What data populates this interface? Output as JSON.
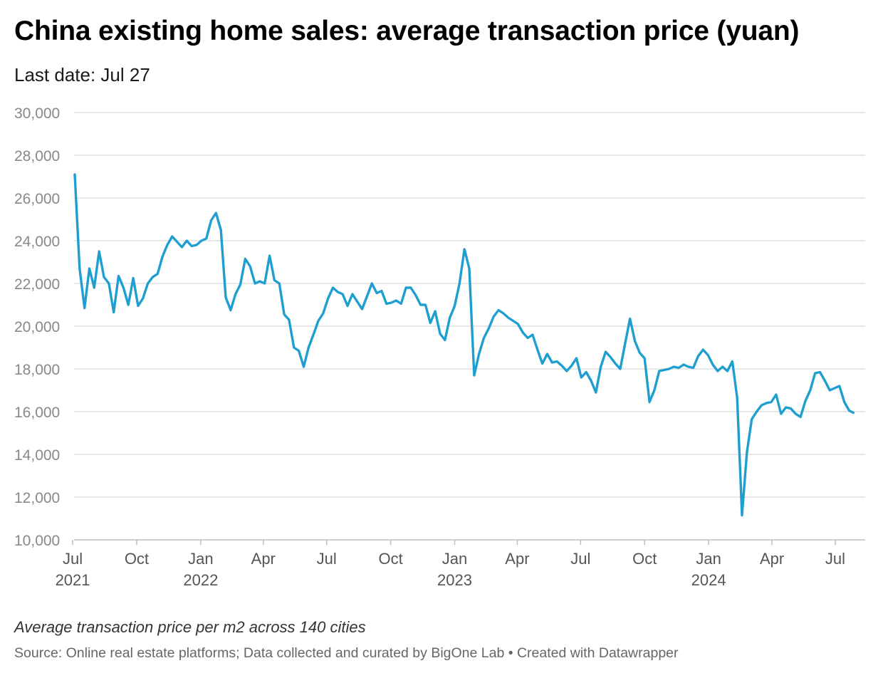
{
  "chart_data": {
    "type": "line",
    "title": "China existing home sales: average transaction price (yuan)",
    "subtitle": "Last date: Jul 27",
    "note": "Average transaction price per m2 across 140 cities",
    "source": "Source: Online real estate platforms; Data collected and curated by BigOne Lab • Created with Datawrapper",
    "ylim": [
      10000,
      30000
    ],
    "yticks": [
      {
        "value": 30000,
        "label": "30,000"
      },
      {
        "value": 28000,
        "label": "28,000"
      },
      {
        "value": 26000,
        "label": "26,000"
      },
      {
        "value": 24000,
        "label": "24,000"
      },
      {
        "value": 22000,
        "label": "22,000"
      },
      {
        "value": 20000,
        "label": "20,000"
      },
      {
        "value": 18000,
        "label": "18,000"
      },
      {
        "value": 16000,
        "label": "16,000"
      },
      {
        "value": 14000,
        "label": "14,000"
      },
      {
        "value": 12000,
        "label": "12,000"
      },
      {
        "value": 10000,
        "label": "10,000"
      }
    ],
    "xlim": [
      "2021-07-03",
      "2024-08-13"
    ],
    "xticks": [
      {
        "date": "2021-07-01",
        "label": "Jul",
        "year": "2021"
      },
      {
        "date": "2021-10-01",
        "label": "Oct",
        "year": ""
      },
      {
        "date": "2022-01-01",
        "label": "Jan",
        "year": "2022"
      },
      {
        "date": "2022-04-01",
        "label": "Apr",
        "year": ""
      },
      {
        "date": "2022-07-01",
        "label": "Jul",
        "year": ""
      },
      {
        "date": "2022-10-01",
        "label": "Oct",
        "year": ""
      },
      {
        "date": "2023-01-01",
        "label": "Jan",
        "year": "2023"
      },
      {
        "date": "2023-04-01",
        "label": "Apr",
        "year": ""
      },
      {
        "date": "2023-07-01",
        "label": "Jul",
        "year": ""
      },
      {
        "date": "2023-10-01",
        "label": "Oct",
        "year": ""
      },
      {
        "date": "2024-01-01",
        "label": "Jan",
        "year": "2024"
      },
      {
        "date": "2024-04-01",
        "label": "Apr",
        "year": ""
      },
      {
        "date": "2024-07-01",
        "label": "Jul",
        "year": ""
      }
    ],
    "line_color": "#1f9fd0",
    "grid_color": "#e1e1e1",
    "series": [
      {
        "x": [
          "2021-07-04",
          "2021-07-11",
          "2021-07-18",
          "2021-07-25",
          "2021-08-01",
          "2021-08-08",
          "2021-08-15",
          "2021-08-22",
          "2021-08-29",
          "2021-09-05",
          "2021-09-12",
          "2021-09-19",
          "2021-09-26",
          "2021-10-03",
          "2021-10-10",
          "2021-10-17",
          "2021-10-24",
          "2021-10-31",
          "2021-11-07",
          "2021-11-14",
          "2021-11-21",
          "2021-11-28",
          "2021-12-05",
          "2021-12-12",
          "2021-12-19",
          "2021-12-26",
          "2022-01-02",
          "2022-01-09",
          "2022-01-16",
          "2022-01-23",
          "2022-01-30",
          "2022-02-06",
          "2022-02-13",
          "2022-02-20",
          "2022-02-27",
          "2022-03-06",
          "2022-03-13",
          "2022-03-20",
          "2022-03-27",
          "2022-04-03",
          "2022-04-10",
          "2022-04-17",
          "2022-04-24",
          "2022-05-01",
          "2022-05-08",
          "2022-05-15",
          "2022-05-22",
          "2022-05-29",
          "2022-06-05",
          "2022-06-12",
          "2022-06-19",
          "2022-06-26",
          "2022-07-03",
          "2022-07-10",
          "2022-07-17",
          "2022-07-24",
          "2022-07-31",
          "2022-08-07",
          "2022-08-14",
          "2022-08-21",
          "2022-08-28",
          "2022-09-04",
          "2022-09-11",
          "2022-09-18",
          "2022-09-25",
          "2022-10-02",
          "2022-10-09",
          "2022-10-16",
          "2022-10-23",
          "2022-10-30",
          "2022-11-06",
          "2022-11-13",
          "2022-11-20",
          "2022-11-27",
          "2022-12-04",
          "2022-12-11",
          "2022-12-18",
          "2022-12-25",
          "2023-01-01",
          "2023-01-08",
          "2023-01-15",
          "2023-01-22",
          "2023-01-29",
          "2023-02-05",
          "2023-02-12",
          "2023-02-19",
          "2023-02-26",
          "2023-03-05",
          "2023-03-12",
          "2023-03-19",
          "2023-03-26",
          "2023-04-02",
          "2023-04-09",
          "2023-04-16",
          "2023-04-23",
          "2023-04-30",
          "2023-05-07",
          "2023-05-14",
          "2023-05-21",
          "2023-05-28",
          "2023-06-04",
          "2023-06-11",
          "2023-06-18",
          "2023-06-25",
          "2023-07-02",
          "2023-07-09",
          "2023-07-16",
          "2023-07-23",
          "2023-07-30",
          "2023-08-06",
          "2023-08-13",
          "2023-08-20",
          "2023-08-27",
          "2023-09-03",
          "2023-09-10",
          "2023-09-17",
          "2023-09-24",
          "2023-10-01",
          "2023-10-08",
          "2023-10-15",
          "2023-10-22",
          "2023-10-29",
          "2023-11-05",
          "2023-11-12",
          "2023-11-19",
          "2023-11-26",
          "2023-12-03",
          "2023-12-10",
          "2023-12-17",
          "2023-12-24",
          "2023-12-31",
          "2024-01-07",
          "2024-01-14",
          "2024-01-21",
          "2024-01-28",
          "2024-02-04",
          "2024-02-11",
          "2024-02-18",
          "2024-02-25",
          "2024-03-03",
          "2024-03-10",
          "2024-03-17",
          "2024-03-24",
          "2024-03-31",
          "2024-04-07",
          "2024-04-14",
          "2024-04-21",
          "2024-04-28",
          "2024-05-05",
          "2024-05-12",
          "2024-05-19",
          "2024-05-26",
          "2024-06-02",
          "2024-06-09",
          "2024-06-16",
          "2024-06-23",
          "2024-06-30",
          "2024-07-07",
          "2024-07-14",
          "2024-07-21",
          "2024-07-27"
        ],
        "values": [
          27100,
          22700,
          20850,
          22700,
          21800,
          23500,
          22300,
          22000,
          20650,
          22350,
          21800,
          21000,
          22250,
          20950,
          21300,
          22000,
          22300,
          22450,
          23250,
          23800,
          24200,
          23950,
          23700,
          24000,
          23750,
          23800,
          24000,
          24100,
          24950,
          25300,
          24500,
          21350,
          20750,
          21500,
          21950,
          23150,
          22800,
          22000,
          22100,
          22000,
          23300,
          22150,
          22000,
          20550,
          20300,
          19000,
          18850,
          18100,
          19000,
          19600,
          20250,
          20600,
          21300,
          21800,
          21600,
          21500,
          20950,
          21500,
          21150,
          20800,
          21400,
          22000,
          21550,
          21650,
          21050,
          21100,
          21200,
          21050,
          21800,
          21800,
          21450,
          21000,
          21000,
          20150,
          20700,
          19650,
          19350,
          20400,
          20950,
          22000,
          23600,
          22700,
          17700,
          18700,
          19450,
          19900,
          20450,
          20750,
          20600,
          20400,
          20250,
          20100,
          19700,
          19450,
          19600,
          18900,
          18250,
          18700,
          18300,
          18350,
          18150,
          17900,
          18150,
          18500,
          17600,
          17850,
          17450,
          16900,
          18100,
          18800,
          18550,
          18250,
          18000,
          19200,
          20350,
          19300,
          18750,
          18500,
          16450,
          17000,
          17900,
          17950,
          18000,
          18100,
          18050,
          18200,
          18100,
          18050,
          18600,
          18900,
          18650,
          18200,
          17900,
          18100,
          17900,
          18350,
          16650,
          11150,
          14100,
          15650,
          16000,
          16300,
          16400,
          16450,
          16800,
          15900,
          16200,
          16150,
          15900,
          15750,
          16500,
          17000,
          17800,
          17850,
          17450,
          17000,
          17100,
          17200,
          16450,
          16050,
          15950
        ]
      }
    ]
  }
}
